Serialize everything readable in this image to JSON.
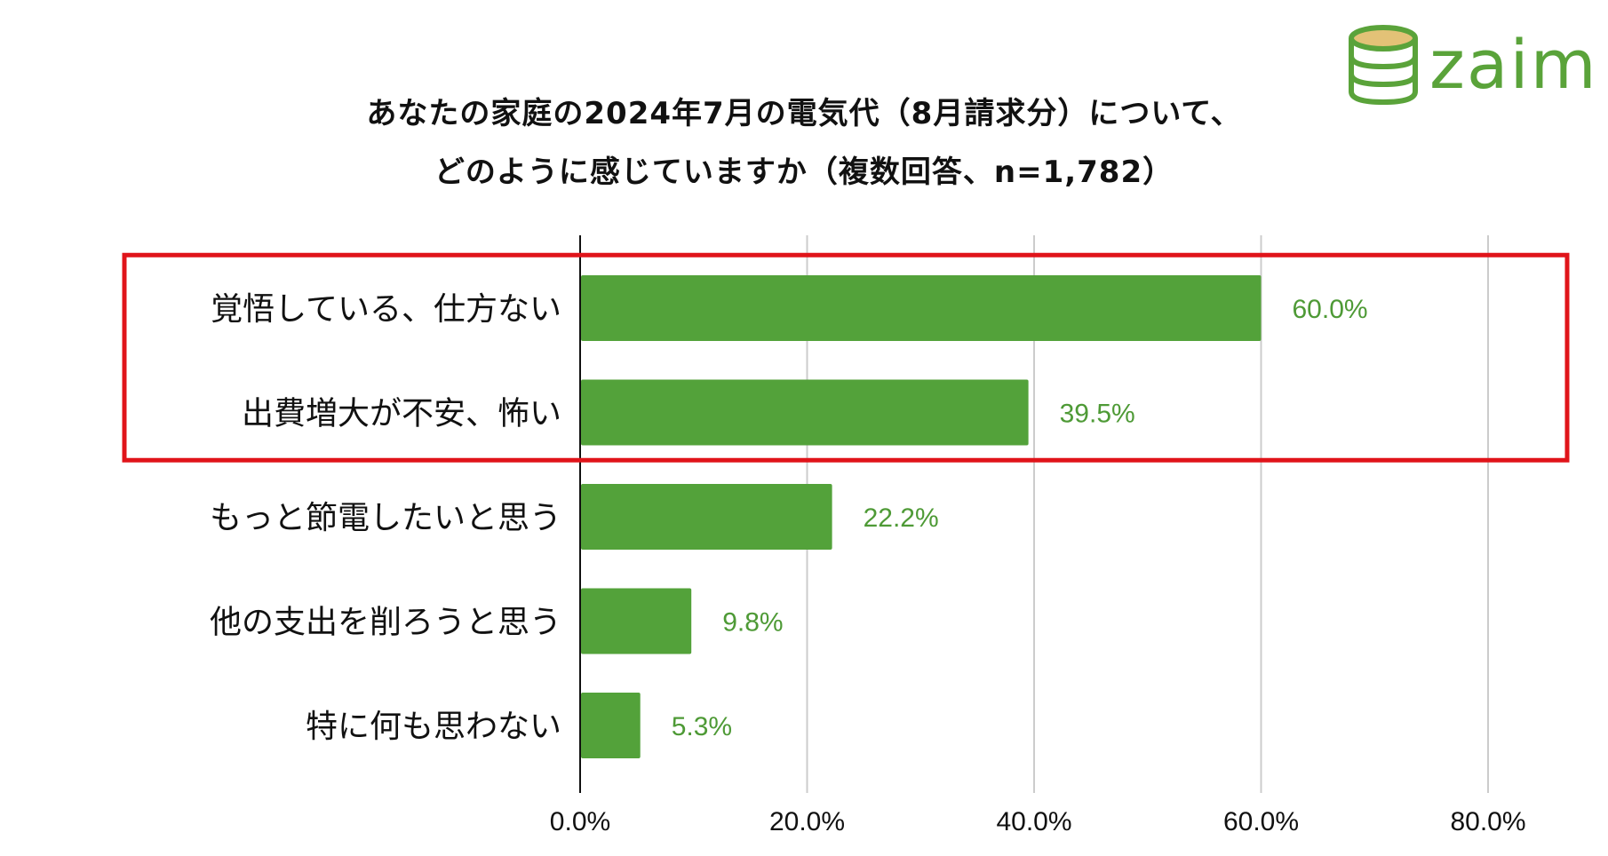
{
  "title": {
    "line1": "あなたの家庭の2024年7月の電気代（8月請求分）について、",
    "line2": "どのように感じていますか（複数回答、n=1,782）"
  },
  "logo": {
    "text": "zaim",
    "icon": "coin-stack-icon"
  },
  "colors": {
    "bar": "#53a23a",
    "value_label": "#4e9a36",
    "grid": "#cccccc",
    "axis": "#111111",
    "highlight_box": "#e0141a"
  },
  "chart_data": {
    "type": "bar",
    "orientation": "horizontal",
    "categories": [
      "覚悟している、仕方ない",
      "出費増大が不安、怖い",
      "もっと節電したいと思う",
      "他の支出を削ろうと思う",
      "特に何も思わない"
    ],
    "values": [
      60.0,
      39.5,
      22.2,
      9.8,
      5.3
    ],
    "value_labels": [
      "60.0%",
      "39.5%",
      "22.2%",
      "9.8%",
      "5.3%"
    ],
    "xlim": [
      0,
      80
    ],
    "xticks": [
      0,
      20,
      40,
      60,
      80
    ],
    "xtick_labels": [
      "0.0%",
      "20.0%",
      "40.0%",
      "60.0%",
      "80.0%"
    ],
    "grid": true,
    "highlighted_categories": [
      0,
      1
    ]
  }
}
